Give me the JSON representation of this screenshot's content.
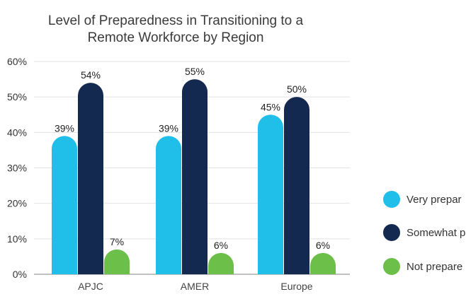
{
  "chart_data": {
    "type": "bar",
    "title": [
      "Level of Preparedness in Transitioning to a",
      "Remote Workforce by Region"
    ],
    "categories": [
      "APJC",
      "AMER",
      "Europe"
    ],
    "series": [
      {
        "name": "Very prepared",
        "legend_text": "Very prepar",
        "color": "#1fbfea",
        "values": [
          39,
          39,
          45
        ],
        "labels": [
          "39%",
          "39%",
          "45%"
        ]
      },
      {
        "name": "Somewhat prepared",
        "legend_text": "Somewhat p",
        "color": "#14294f",
        "values": [
          54,
          55,
          50
        ],
        "labels": [
          "54%",
          "55%",
          "50%"
        ]
      },
      {
        "name": "Not prepared",
        "legend_text": "Not prepare",
        "color": "#6cc04a",
        "values": [
          7,
          6,
          6
        ],
        "labels": [
          "7%",
          "6%",
          "6%"
        ]
      }
    ],
    "ylim": [
      0,
      60
    ],
    "yticks": [
      0,
      10,
      20,
      30,
      40,
      50,
      60
    ],
    "ytick_labels": [
      "0%",
      "10%",
      "20%",
      "30%",
      "40%",
      "50%",
      "60%"
    ],
    "xlabel": "",
    "ylabel": "",
    "grid": true,
    "legend_position": "right"
  }
}
